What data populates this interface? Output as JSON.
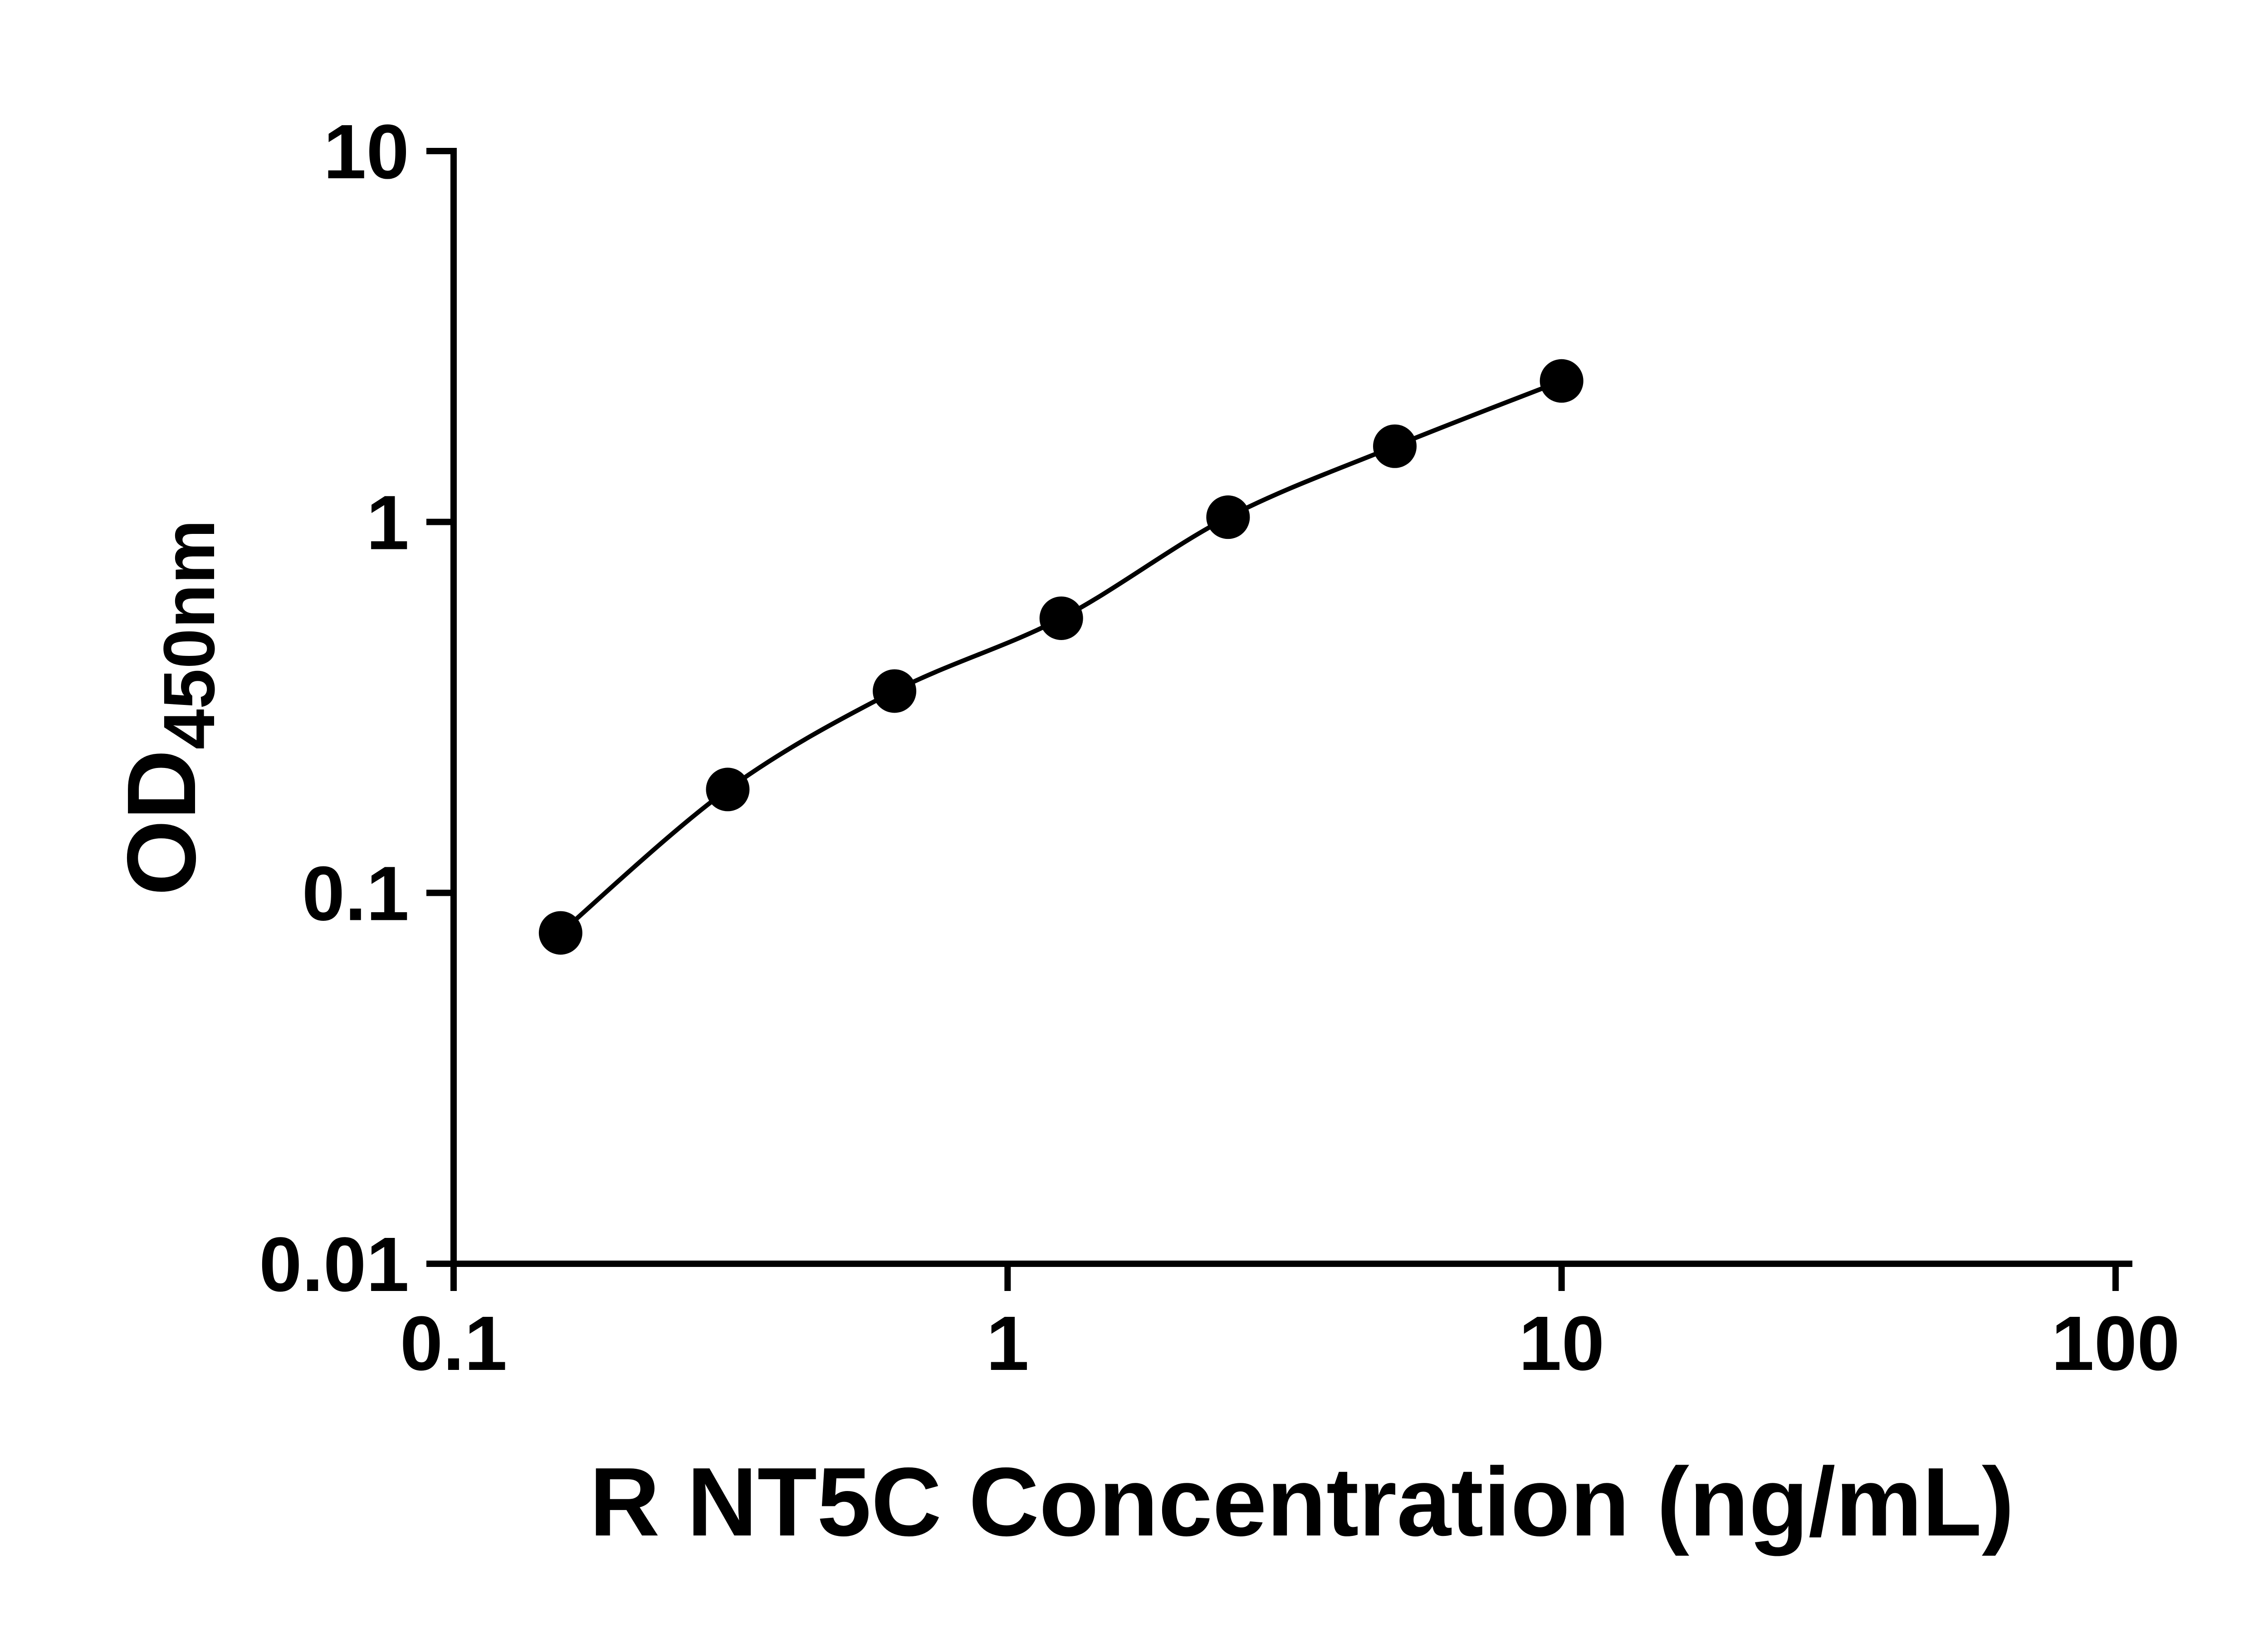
{
  "chart_data": {
    "type": "scatter",
    "subtype": "log-log ELISA standard curve with fitted line",
    "xlabel": "R NT5C Concentration (ng/mL)",
    "ylabel": "OD450nm",
    "ylabel_parts": {
      "main": "OD",
      "sub": "450nm"
    },
    "x_scale": "log10",
    "y_scale": "log10",
    "xlim": [
      0.1,
      100
    ],
    "ylim": [
      0.01,
      10
    ],
    "x_ticks": [
      0.1,
      1,
      10,
      100
    ],
    "x_tick_labels": [
      "0.1",
      "1",
      "10",
      "100"
    ],
    "y_ticks": [
      0.01,
      0.1,
      1,
      10
    ],
    "y_tick_labels": [
      "0.01",
      "0.1",
      "1",
      "10"
    ],
    "grid": false,
    "legend": "none",
    "series": [
      {
        "name": "standard-curve",
        "marker": "filled-circle",
        "line": "smooth",
        "color": "#000000",
        "x": [
          0.156,
          0.3125,
          0.625,
          1.25,
          2.5,
          5,
          10
        ],
        "y": [
          0.078,
          0.19,
          0.35,
          0.55,
          1.03,
          1.6,
          2.4
        ]
      }
    ]
  },
  "colors": {
    "foreground": "#000000",
    "background": "#ffffff"
  }
}
